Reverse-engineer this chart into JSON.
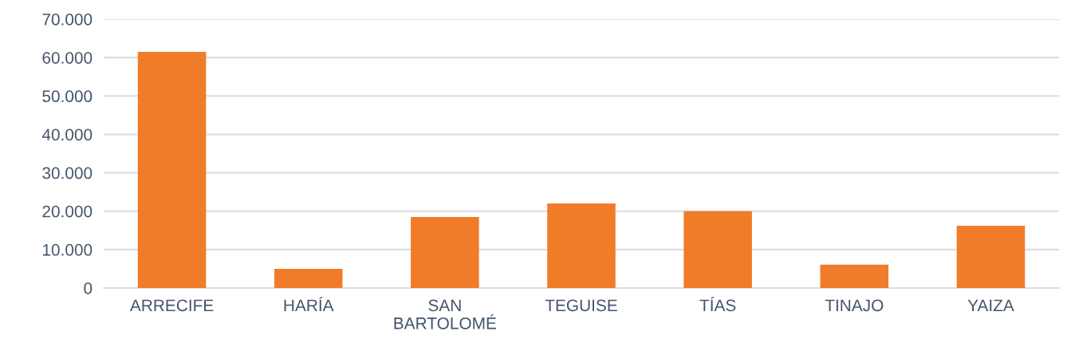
{
  "chart_data": {
    "type": "bar",
    "categories": [
      "ARRECIFE",
      "HARÍA",
      "SAN\nBARTOLOMÉ",
      "TEGUISE",
      "TÍAS",
      "TINAJO",
      "YAIZA"
    ],
    "values": [
      61500,
      5000,
      18500,
      22000,
      20000,
      6100,
      16200
    ],
    "color": "#f07c2a",
    "ylim": [
      0,
      70000
    ],
    "yticks": [
      {
        "value": 0,
        "label": "0"
      },
      {
        "value": 10000,
        "label": "10.000"
      },
      {
        "value": 20000,
        "label": "20.000"
      },
      {
        "value": 30000,
        "label": "30.000"
      },
      {
        "value": 40000,
        "label": "40.000"
      },
      {
        "value": 50000,
        "label": "50.000"
      },
      {
        "value": 60000,
        "label": "60.000"
      },
      {
        "value": 70000,
        "label": "70.000"
      }
    ],
    "grid": "y"
  }
}
